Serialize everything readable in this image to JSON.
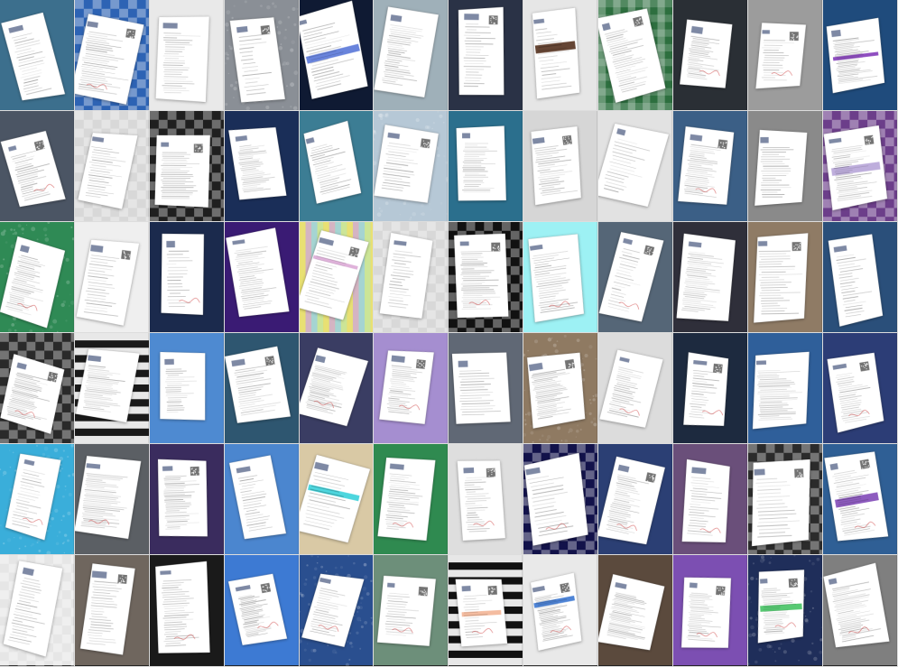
{
  "mosaic": {
    "rows": 6,
    "cols": 12,
    "tiles": [
      {
        "bg": "#3c6f8d",
        "pattern": "plain",
        "accent": ""
      },
      {
        "bg": "#2d63b4",
        "pattern": "check",
        "accent": ""
      },
      {
        "bg": "#e9e9e9",
        "pattern": "plain",
        "accent": ""
      },
      {
        "bg": "#8a8f96",
        "pattern": "knit",
        "accent": ""
      },
      {
        "bg": "#0f1a33",
        "pattern": "plain",
        "accent": "#4f6fd6"
      },
      {
        "bg": "#9fb0b9",
        "pattern": "plain",
        "accent": ""
      },
      {
        "bg": "#2a3246",
        "pattern": "plain",
        "accent": ""
      },
      {
        "bg": "#e6e6e6",
        "pattern": "plain",
        "accent": "#4a2410"
      },
      {
        "bg": "#2d6f3f",
        "pattern": "gingham",
        "accent": ""
      },
      {
        "bg": "#2a2f35",
        "pattern": "plain",
        "accent": ""
      },
      {
        "bg": "#9c9c9c",
        "pattern": "plain",
        "accent": ""
      },
      {
        "bg": "#1f4b7c",
        "pattern": "plain",
        "accent": "#7b2fb5"
      },
      {
        "bg": "#4b5564",
        "pattern": "plain",
        "accent": ""
      },
      {
        "bg": "#d8d8d8",
        "pattern": "check",
        "accent": ""
      },
      {
        "bg": "#1f1f1f",
        "pattern": "check",
        "accent": ""
      },
      {
        "bg": "#1a2e58",
        "pattern": "plain",
        "accent": ""
      },
      {
        "bg": "#3c7d94",
        "pattern": "plain",
        "accent": ""
      },
      {
        "bg": "#b6c8d6",
        "pattern": "knit",
        "accent": ""
      },
      {
        "bg": "#2b6f8d",
        "pattern": "plain",
        "accent": ""
      },
      {
        "bg": "#d6d6d6",
        "pattern": "plain",
        "accent": ""
      },
      {
        "bg": "#e2e2e2",
        "pattern": "plain",
        "accent": ""
      },
      {
        "bg": "#3b5f86",
        "pattern": "plain",
        "accent": ""
      },
      {
        "bg": "#8a8a8a",
        "pattern": "plain",
        "accent": ""
      },
      {
        "bg": "#6c3e8a",
        "pattern": "check",
        "accent": "#b3a0d6"
      },
      {
        "bg": "#2f8a55",
        "pattern": "knit",
        "accent": ""
      },
      {
        "bg": "#efefef",
        "pattern": "plain",
        "accent": ""
      },
      {
        "bg": "#1b2a4d",
        "pattern": "plain",
        "accent": ""
      },
      {
        "bg": "#3a1b74",
        "pattern": "plain",
        "accent": ""
      },
      {
        "bg": "#c4e08f",
        "pattern": "stripes",
        "accent": "#d9a5d3"
      },
      {
        "bg": "#d8d8d8",
        "pattern": "check",
        "accent": ""
      },
      {
        "bg": "#111111",
        "pattern": "check",
        "accent": ""
      },
      {
        "bg": "#9df1f4",
        "pattern": "plain",
        "accent": ""
      },
      {
        "bg": "#556677",
        "pattern": "plain",
        "accent": ""
      },
      {
        "bg": "#2f2f3a",
        "pattern": "plain",
        "accent": ""
      },
      {
        "bg": "#8f7b65",
        "pattern": "plain",
        "accent": ""
      },
      {
        "bg": "#2a4f7a",
        "pattern": "plain",
        "accent": ""
      },
      {
        "bg": "#2a2a2a",
        "pattern": "check",
        "accent": ""
      },
      {
        "bg": "#1a1a1a",
        "pattern": "hstripes",
        "accent": ""
      },
      {
        "bg": "#4e8ad1",
        "pattern": "plain",
        "accent": ""
      },
      {
        "bg": "#2e5670",
        "pattern": "plain",
        "accent": ""
      },
      {
        "bg": "#3a3d63",
        "pattern": "plain",
        "accent": ""
      },
      {
        "bg": "#a58ed0",
        "pattern": "plain",
        "accent": ""
      },
      {
        "bg": "#606875",
        "pattern": "plain",
        "accent": ""
      },
      {
        "bg": "#8f7a62",
        "pattern": "knit",
        "accent": ""
      },
      {
        "bg": "#dcdcdc",
        "pattern": "plain",
        "accent": ""
      },
      {
        "bg": "#1d2a3f",
        "pattern": "plain",
        "accent": ""
      },
      {
        "bg": "#2f5f9a",
        "pattern": "plain",
        "accent": ""
      },
      {
        "bg": "#2c3d76",
        "pattern": "plain",
        "accent": ""
      },
      {
        "bg": "#3aaeda",
        "pattern": "knit",
        "accent": ""
      },
      {
        "bg": "#5b5f64",
        "pattern": "plain",
        "accent": ""
      },
      {
        "bg": "#3a2c5e",
        "pattern": "plain",
        "accent": ""
      },
      {
        "bg": "#4b86cf",
        "pattern": "plain",
        "accent": ""
      },
      {
        "bg": "#d9c9a5",
        "pattern": "plain",
        "accent": "#2ecfd8"
      },
      {
        "bg": "#2f8a50",
        "pattern": "plain",
        "accent": ""
      },
      {
        "bg": "#dedede",
        "pattern": "plain",
        "accent": ""
      },
      {
        "bg": "#12124a",
        "pattern": "check",
        "accent": ""
      },
      {
        "bg": "#2b3f74",
        "pattern": "plain",
        "accent": ""
      },
      {
        "bg": "#6a4f7a",
        "pattern": "plain",
        "accent": ""
      },
      {
        "bg": "#2b2b2b",
        "pattern": "check",
        "accent": ""
      },
      {
        "bg": "#2f5f95",
        "pattern": "plain",
        "accent": "#7a3fb4"
      },
      {
        "bg": "#e6e6e6",
        "pattern": "check",
        "accent": ""
      },
      {
        "bg": "#6f665e",
        "pattern": "plain",
        "accent": ""
      },
      {
        "bg": "#1a1a1a",
        "pattern": "plain",
        "accent": ""
      },
      {
        "bg": "#3d7ad3",
        "pattern": "plain",
        "accent": ""
      },
      {
        "bg": "#2a4f8f",
        "pattern": "knit",
        "accent": ""
      },
      {
        "bg": "#6d8f7a",
        "pattern": "plain",
        "accent": ""
      },
      {
        "bg": "#111111",
        "pattern": "hstripes",
        "accent": "#f2b08f"
      },
      {
        "bg": "#e9e9e9",
        "pattern": "plain",
        "accent": "#2f6ecf"
      },
      {
        "bg": "#5b4a3d",
        "pattern": "plain",
        "accent": ""
      },
      {
        "bg": "#7c4fb2",
        "pattern": "plain",
        "accent": ""
      },
      {
        "bg": "#1f2e5a",
        "pattern": "knit",
        "accent": "#3bbf5a"
      },
      {
        "bg": "#7f7f7f",
        "pattern": "plain",
        "accent": ""
      }
    ]
  }
}
